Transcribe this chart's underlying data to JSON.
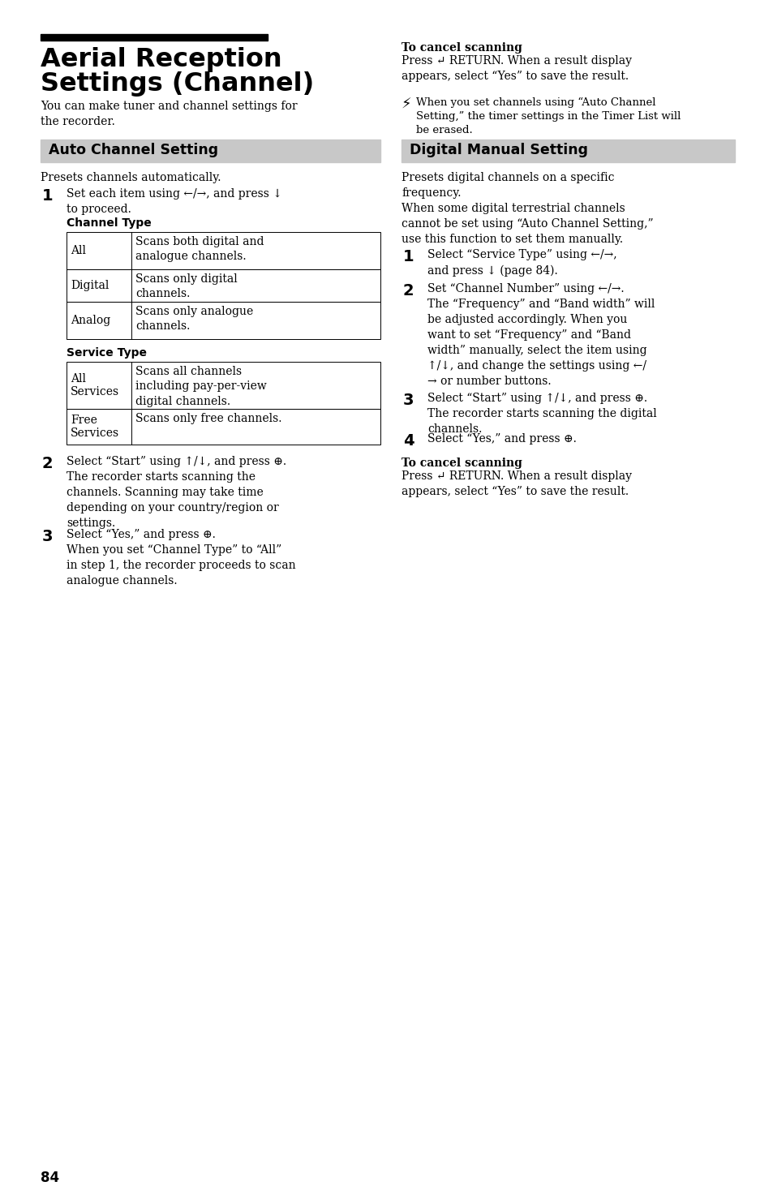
{
  "page_bg": "#ffffff",
  "page_number": "84",
  "main_title_line1": "Aerial Reception",
  "main_title_line2": "Settings (Channel)",
  "section1_header": "Auto Channel Setting",
  "section2_header": "Digital Manual Setting",
  "section_header_bg": "#c8c8c8",
  "intro_text": "You can make tuner and channel settings for\nthe recorder.",
  "section1_intro": "Presets channels automatically.",
  "channel_type_label": "Channel Type",
  "service_type_label": "Service Type",
  "channel_type_rows": [
    [
      "All",
      "Scans both digital and\nanalogue channels."
    ],
    [
      "Digital",
      "Scans only digital\nchannels."
    ],
    [
      "Analog",
      "Scans only analogue\nchannels."
    ]
  ],
  "service_type_rows": [
    [
      "All\nServices",
      "Scans all channels\nincluding pay-per-view\ndigital channels."
    ],
    [
      "Free\nServices",
      "Scans only free channels."
    ]
  ],
  "step1_left": "Set each item using ←/→, and press ↓\nto proceed.",
  "step2_left": "Select “Start” using ↑/↓, and press ⊕.\nThe recorder starts scanning the\nchannels. Scanning may take time\ndepending on your country/region or\nsettings.",
  "step3_left": "Select “Yes,” and press ⊕.\nWhen you set “Channel Type” to “All”\nin step 1, the recorder proceeds to scan\nanalogue channels.",
  "cancel_scanning_bold1": "To cancel scanning",
  "cancel_scanning_text1": "Press ↵ RETURN. When a result display\nappears, select “Yes” to save the result.",
  "note_symbol": "⚡",
  "note_text": "When you set channels using “Auto Channel\nSetting,” the timer settings in the Timer List will\nbe erased.",
  "section2_intro": "Presets digital channels on a specific\nfrequency.\nWhen some digital terrestrial channels\ncannot be set using “Auto Channel Setting,”\nuse this function to set them manually.",
  "step1_right": "Select “Service Type” using ←/→,\nand press ↓ (page 84).",
  "step2_right": "Set “Channel Number” using ←/→.\nThe “Frequency” and “Band width” will\nbe adjusted accordingly. When you\nwant to set “Frequency” and “Band\nwidth” manually, select the item using\n↑/↓, and change the settings using ←/\n→ or number buttons.",
  "step3_right": "Select “Start” using ↑/↓, and press ⊕.\nThe recorder starts scanning the digital\nchannels.",
  "step4_right": "Select “Yes,” and press ⊕.",
  "cancel_scanning_bold2": "To cancel scanning",
  "cancel_scanning_text2": "Press ↵ RETURN. When a result display\nappears, select “Yes” to save the result."
}
